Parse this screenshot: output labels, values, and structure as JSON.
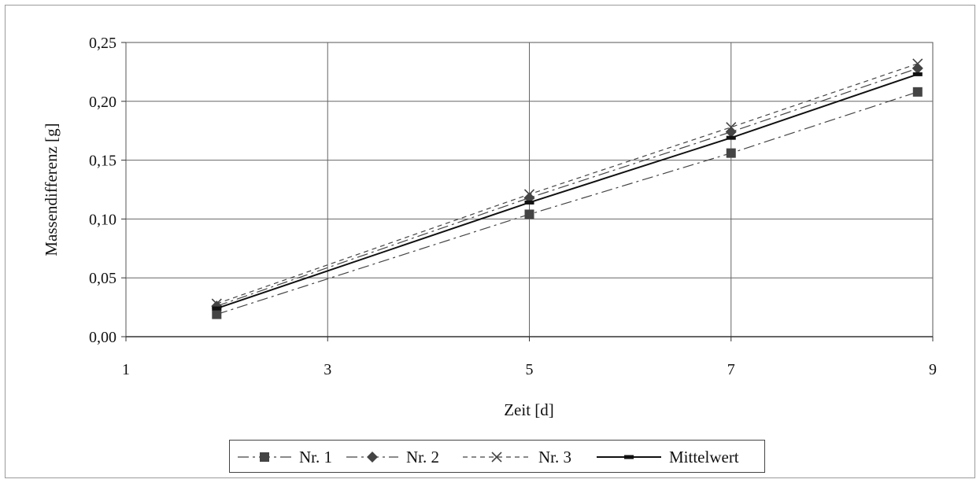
{
  "chart_data": {
    "type": "line",
    "xlabel": "Zeit [d]",
    "ylabel": "Massendifferenz [g]",
    "xlim": [
      1,
      9
    ],
    "ylim": [
      0,
      0.25
    ],
    "x_ticks": [
      "1",
      "3",
      "5",
      "7",
      "9"
    ],
    "y_ticks": [
      "0,00",
      "0,05",
      "0,10",
      "0,15",
      "0,20",
      "0,25"
    ],
    "grid": true,
    "legend_position": "bottom",
    "series": [
      {
        "name": "Nr. 1",
        "marker": "square",
        "line": "dash-dot",
        "color": "#444444",
        "x": [
          1.9,
          5.0,
          7.0,
          8.85
        ],
        "y": [
          0.019,
          0.104,
          0.156,
          0.208
        ]
      },
      {
        "name": "Nr. 2",
        "marker": "diamond",
        "line": "dash-dot",
        "color": "#444444",
        "x": [
          1.9,
          5.0,
          7.0,
          8.85
        ],
        "y": [
          0.026,
          0.118,
          0.174,
          0.228
        ]
      },
      {
        "name": "Nr. 3",
        "marker": "x",
        "line": "dashed",
        "color": "#444444",
        "x": [
          1.9,
          5.0,
          7.0,
          8.85
        ],
        "y": [
          0.028,
          0.121,
          0.178,
          0.232
        ]
      },
      {
        "name": "Mittelwert",
        "marker": "dash",
        "line": "solid",
        "color": "#111111",
        "x": [
          1.9,
          5.0,
          7.0,
          8.85
        ],
        "y": [
          0.024,
          0.114,
          0.169,
          0.223
        ]
      }
    ]
  }
}
